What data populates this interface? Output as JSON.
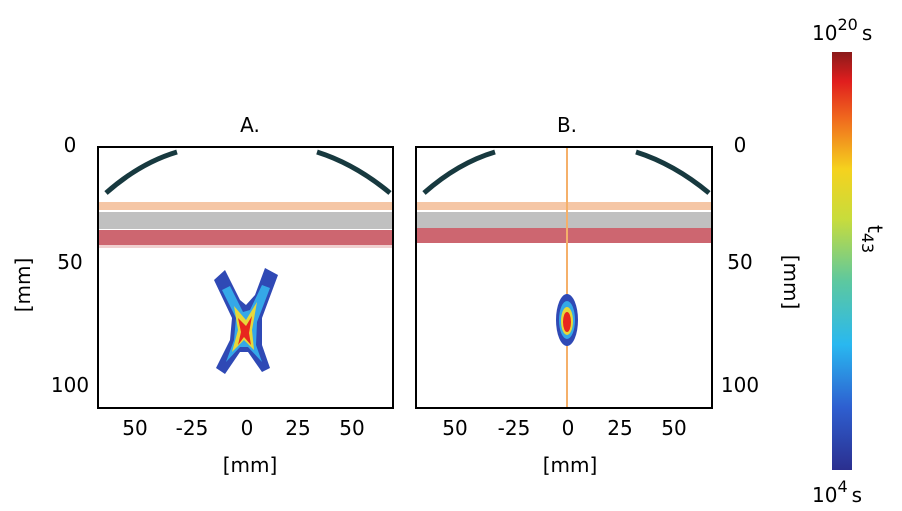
{
  "panels": [
    {
      "title": "A.",
      "y_ticks": [
        "0",
        "50",
        "100"
      ],
      "x_ticks": [
        "50",
        "-25",
        "0",
        "25",
        "50"
      ],
      "x_label": "[mm]",
      "y_label": "[mm]"
    },
    {
      "title": "B.",
      "y_ticks": [
        "0",
        "50",
        "100"
      ],
      "x_ticks": [
        "50",
        "-25",
        "0",
        "25",
        "50"
      ],
      "x_label": "[mm]",
      "y_label": "[mm]"
    }
  ],
  "colorbar": {
    "top": {
      "base": "10",
      "exponent": "20",
      "unit": "s"
    },
    "bottom": {
      "base": "10",
      "exponent": "4",
      "unit": "s"
    },
    "label": {
      "base": "t",
      "subscript": "43"
    }
  }
}
